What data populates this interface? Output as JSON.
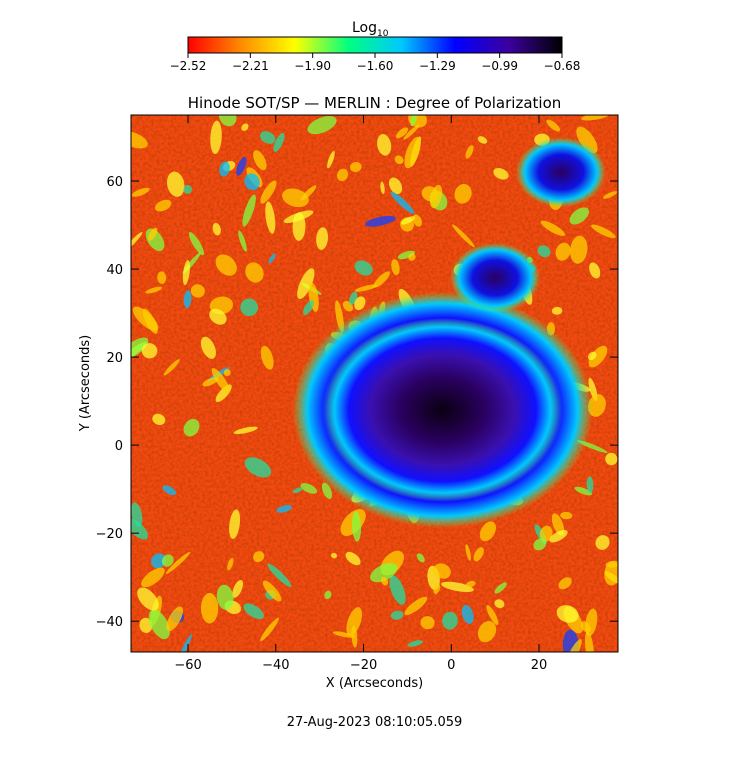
{
  "colorbar": {
    "label": "Log",
    "label_subscript": "10",
    "ticks": [
      "-2.52",
      "-2.21",
      "-1.90",
      "-1.60",
      "-1.29",
      "-0.99",
      "-0.68"
    ],
    "range": [
      -2.52,
      -0.68
    ],
    "colormap": [
      "#ff0000",
      "#ff8c00",
      "#ffff00",
      "#00ff80",
      "#00c8ff",
      "#0000ff",
      "#3c00a0",
      "#000000"
    ]
  },
  "chart_data": {
    "type": "heatmap",
    "title": "Hinode SOT/SP — MERLIN : Degree of Polarization",
    "xlabel": "X (Arcseconds)",
    "ylabel": "Y (Arcseconds)",
    "xlim": [
      -73,
      38
    ],
    "ylim": [
      -47,
      75
    ],
    "xticks": [
      -60,
      -40,
      -20,
      0,
      20
    ],
    "yticks": [
      -40,
      -20,
      0,
      20,
      40,
      60
    ],
    "grid": false,
    "value_scale": "log10",
    "features": [
      {
        "name": "umbra",
        "x": -2,
        "y": 8,
        "value": -0.7
      },
      {
        "name": "penumbra",
        "x": -2,
        "y": 8,
        "value": -1.1
      },
      {
        "name": "pore",
        "x": 25,
        "y": 62,
        "value": -0.85
      },
      {
        "name": "pore",
        "x": 10,
        "y": 38,
        "value": -0.95
      },
      {
        "name": "quiet sun",
        "value": -2.4
      }
    ]
  },
  "footer": {
    "timestamp": "27-Aug-2023 08:10:05.059"
  }
}
